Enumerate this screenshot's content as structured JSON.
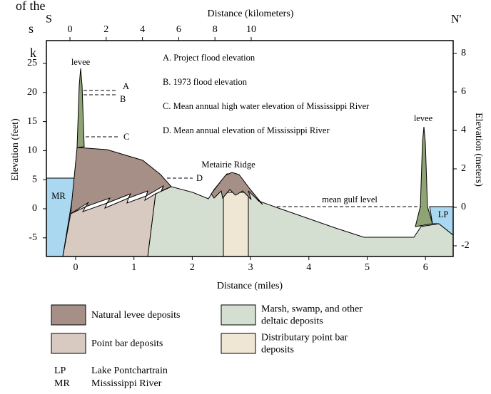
{
  "fragments": [
    "of the",
    "s",
    "k"
  ],
  "ends": {
    "left": "S",
    "right": "N'"
  },
  "axes": {
    "top_title": "Distance (kilometers)",
    "top_ticks": [
      "0",
      "2",
      "4",
      "6",
      "8",
      "10"
    ],
    "bottom_title": "Distance (miles)",
    "bottom_ticks": [
      "0",
      "1",
      "2",
      "3",
      "4",
      "5",
      "6"
    ],
    "left_title": "Elevation (feet)",
    "left_ticks": [
      "25",
      "20",
      "15",
      "10",
      "5",
      "0",
      "-5"
    ],
    "right_title": "Elevation (meters)",
    "right_ticks": [
      "8",
      "6",
      "4",
      "2",
      "0",
      "-2"
    ]
  },
  "notes": [
    "A. Project flood elevation",
    "B. 1973 flood elevation",
    "C. Mean annual high water elevation of Mississippi River",
    "D. Mean annual elevation of Mississippi River"
  ],
  "markers": [
    "A",
    "B",
    "C",
    "D"
  ],
  "labels": {
    "levee_left": "levee",
    "levee_right": "levee",
    "ridge": "Metairie Ridge",
    "gulf": "mean gulf level",
    "mr": "MR",
    "lp": "LP"
  },
  "legend": [
    [
      "Natural levee deposits"
    ],
    [
      "Point bar deposits"
    ],
    [
      "Marsh, swamp, and other",
      "deltaic deposits"
    ],
    [
      "Distributary point bar",
      "deposits"
    ]
  ],
  "abbreviations": [
    [
      "LP",
      "Lake Pontchartrain"
    ],
    [
      "MR",
      "Mississippi River"
    ]
  ]
}
